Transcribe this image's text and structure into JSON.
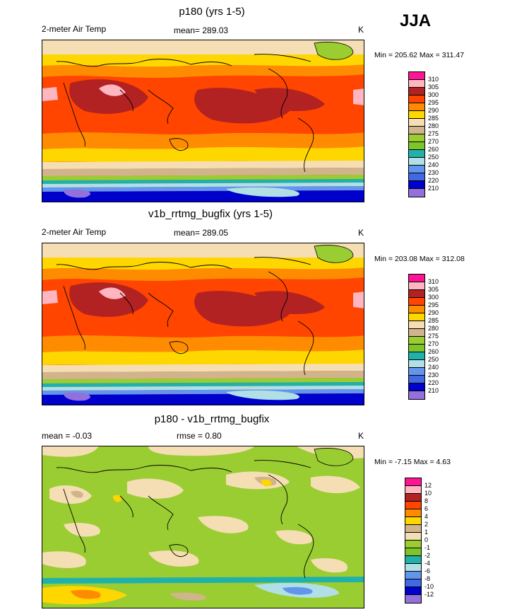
{
  "season": "JJA",
  "panels": [
    {
      "title": "p180 (yrs 1-5)",
      "left_label": "2-meter Air Temp",
      "center_label": "mean= 289.03",
      "unit": "K",
      "minmax": "Min = 205.62 Max = 311.47",
      "legend": {
        "labels": [
          "310",
          "305",
          "300",
          "295",
          "290",
          "285",
          "280",
          "275",
          "270",
          "260",
          "250",
          "240",
          "230",
          "220",
          "210"
        ],
        "colors": [
          "#ff1493",
          "#ffb6c1",
          "#b22222",
          "#ff4500",
          "#ff8c00",
          "#ffd700",
          "#f5deb3",
          "#d2b48c",
          "#9acd32",
          "#7cc52a",
          "#20b2aa",
          "#b0e0e6",
          "#6495ed",
          "#4169e1",
          "#0000cd",
          "#9370db"
        ]
      }
    },
    {
      "title": "v1b_rrtmg_bugfix (yrs 1-5)",
      "left_label": "2-meter Air Temp",
      "center_label": "mean= 289.05",
      "unit": "K",
      "minmax": "Min = 203.08 Max = 312.08",
      "legend": {
        "labels": [
          "310",
          "305",
          "300",
          "295",
          "290",
          "285",
          "280",
          "275",
          "270",
          "260",
          "250",
          "240",
          "230",
          "220",
          "210"
        ],
        "colors": [
          "#ff1493",
          "#ffb6c1",
          "#b22222",
          "#ff4500",
          "#ff8c00",
          "#ffd700",
          "#f5deb3",
          "#d2b48c",
          "#9acd32",
          "#7cc52a",
          "#20b2aa",
          "#b0e0e6",
          "#6495ed",
          "#4169e1",
          "#0000cd",
          "#9370db"
        ]
      }
    },
    {
      "title": "p180 - v1b_rrtmg_bugfix",
      "left_label": "mean =  -0.03",
      "center_label": "rmse =   0.80",
      "unit": "K",
      "minmax": "Min =  -7.15 Max =   4.63",
      "legend": {
        "labels": [
          "12",
          "10",
          "8",
          "6",
          "4",
          "2",
          "1",
          "0",
          "-1",
          "-2",
          "-4",
          "-6",
          "-8",
          "-10",
          "-12"
        ],
        "colors": [
          "#ff1493",
          "#ffb6c1",
          "#b22222",
          "#ff4500",
          "#ff8c00",
          "#ffd700",
          "#d2b48c",
          "#f5deb3",
          "#9acd32",
          "#7cc52a",
          "#20b2aa",
          "#b0e0e6",
          "#6495ed",
          "#4169e1",
          "#0000cd",
          "#9370db"
        ]
      }
    }
  ]
}
